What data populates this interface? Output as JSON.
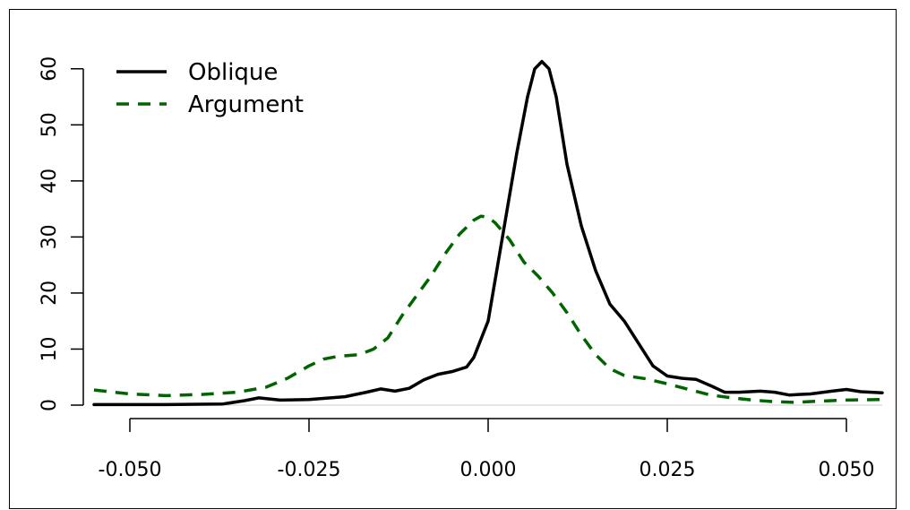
{
  "chart_data": {
    "type": "line",
    "title": "",
    "xlabel": "",
    "ylabel": "",
    "xlim": [
      -0.055,
      0.055
    ],
    "ylim": [
      0,
      63
    ],
    "x_ticks": [
      -0.05,
      -0.025,
      0.0,
      0.025,
      0.05
    ],
    "x_tick_labels": [
      "-0.050",
      "-0.025",
      "0.000",
      "0.025",
      "0.050"
    ],
    "y_ticks": [
      0,
      10,
      20,
      30,
      40,
      50,
      60
    ],
    "y_tick_labels": [
      "0",
      "10",
      "20",
      "30",
      "40",
      "50",
      "60"
    ],
    "grid": false,
    "legend_position": "top-left",
    "series": [
      {
        "name": "Oblique",
        "color": "#000000",
        "style": "solid",
        "points": [
          [
            -0.055,
            0.1
          ],
          [
            -0.045,
            0.1
          ],
          [
            -0.037,
            0.2
          ],
          [
            -0.034,
            0.8
          ],
          [
            -0.032,
            1.3
          ],
          [
            -0.029,
            0.9
          ],
          [
            -0.025,
            1.0
          ],
          [
            -0.02,
            1.5
          ],
          [
            -0.017,
            2.3
          ],
          [
            -0.015,
            2.9
          ],
          [
            -0.013,
            2.5
          ],
          [
            -0.011,
            3.0
          ],
          [
            -0.009,
            4.5
          ],
          [
            -0.007,
            5.5
          ],
          [
            -0.005,
            6.0
          ],
          [
            -0.003,
            6.8
          ],
          [
            -0.002,
            8.5
          ],
          [
            0.0,
            15.0
          ],
          [
            0.002,
            30.0
          ],
          [
            0.004,
            45.0
          ],
          [
            0.0055,
            55.0
          ],
          [
            0.0065,
            60.0
          ],
          [
            0.0075,
            61.3
          ],
          [
            0.0085,
            60.0
          ],
          [
            0.0095,
            55.0
          ],
          [
            0.011,
            43.0
          ],
          [
            0.013,
            32.0
          ],
          [
            0.015,
            24.0
          ],
          [
            0.017,
            18.0
          ],
          [
            0.019,
            15.0
          ],
          [
            0.021,
            11.0
          ],
          [
            0.023,
            7.0
          ],
          [
            0.025,
            5.2
          ],
          [
            0.027,
            4.8
          ],
          [
            0.029,
            4.6
          ],
          [
            0.031,
            3.5
          ],
          [
            0.033,
            2.3
          ],
          [
            0.035,
            2.3
          ],
          [
            0.038,
            2.5
          ],
          [
            0.04,
            2.3
          ],
          [
            0.042,
            1.8
          ],
          [
            0.045,
            2.0
          ],
          [
            0.048,
            2.5
          ],
          [
            0.05,
            2.8
          ],
          [
            0.052,
            2.4
          ],
          [
            0.055,
            2.2
          ]
        ]
      },
      {
        "name": "Argument",
        "color": "#006400",
        "style": "dashed",
        "points": [
          [
            -0.055,
            2.7
          ],
          [
            -0.05,
            2.0
          ],
          [
            -0.045,
            1.7
          ],
          [
            -0.04,
            1.9
          ],
          [
            -0.035,
            2.3
          ],
          [
            -0.031,
            3.2
          ],
          [
            -0.028,
            4.8
          ],
          [
            -0.025,
            7.0
          ],
          [
            -0.023,
            8.2
          ],
          [
            -0.021,
            8.7
          ],
          [
            -0.018,
            9.0
          ],
          [
            -0.016,
            10.0
          ],
          [
            -0.014,
            12.0
          ],
          [
            -0.012,
            16.0
          ],
          [
            -0.01,
            19.5
          ],
          [
            -0.008,
            23.0
          ],
          [
            -0.006,
            27.0
          ],
          [
            -0.004,
            30.5
          ],
          [
            -0.002,
            33.0
          ],
          [
            -0.001,
            33.7
          ],
          [
            0.0,
            33.5
          ],
          [
            0.001,
            32.5
          ],
          [
            0.003,
            29.5
          ],
          [
            0.005,
            25.5
          ],
          [
            0.007,
            23.0
          ],
          [
            0.009,
            20.0
          ],
          [
            0.011,
            16.5
          ],
          [
            0.013,
            12.5
          ],
          [
            0.015,
            9.0
          ],
          [
            0.017,
            6.5
          ],
          [
            0.019,
            5.3
          ],
          [
            0.022,
            4.7
          ],
          [
            0.025,
            3.8
          ],
          [
            0.028,
            2.8
          ],
          [
            0.031,
            1.8
          ],
          [
            0.034,
            1.3
          ],
          [
            0.037,
            0.9
          ],
          [
            0.04,
            0.6
          ],
          [
            0.043,
            0.5
          ],
          [
            0.046,
            0.7
          ],
          [
            0.05,
            0.9
          ],
          [
            0.055,
            1.0
          ]
        ]
      }
    ]
  }
}
